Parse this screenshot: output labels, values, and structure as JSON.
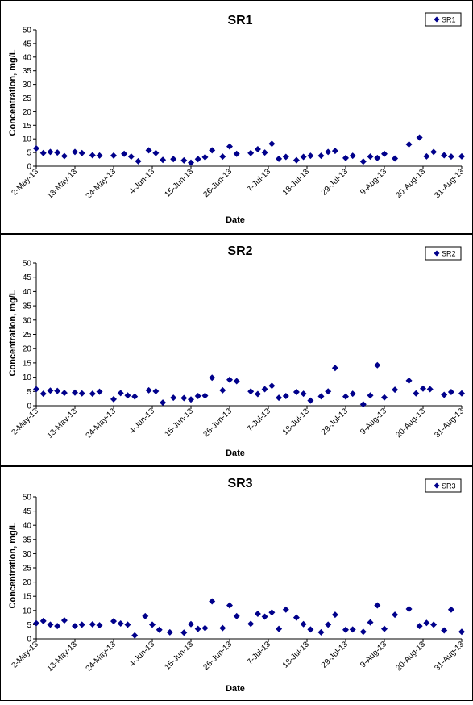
{
  "chart_data": [
    {
      "type": "scatter",
      "title": "SR1",
      "xlabel": "Date",
      "ylabel": "Concentration, mg/L",
      "ylim": [
        0,
        50
      ],
      "yticks": [
        0,
        5,
        10,
        15,
        20,
        25,
        30,
        35,
        40,
        45,
        50
      ],
      "xlim": [
        "2013-05-02",
        "2013-08-31"
      ],
      "xtick_labels": [
        "2-May-13",
        "13-May-13",
        "24-May-13",
        "4-Jun-13",
        "15-Jun-13",
        "26-Jun-13",
        "7-Jul-13",
        "18-Jul-13",
        "29-Jul-13",
        "9-Aug-13",
        "20-Aug-13",
        "31-Aug-13"
      ],
      "legend_position": "top-right",
      "grid": false,
      "marker": "diamond",
      "color": "#00008B",
      "series": [
        {
          "name": "SR1",
          "x": [
            "2013-05-02",
            "2013-05-04",
            "2013-05-06",
            "2013-05-08",
            "2013-05-10",
            "2013-05-13",
            "2013-05-15",
            "2013-05-18",
            "2013-05-20",
            "2013-05-24",
            "2013-05-27",
            "2013-05-29",
            "2013-05-31",
            "2013-06-03",
            "2013-06-05",
            "2013-06-07",
            "2013-06-10",
            "2013-06-13",
            "2013-06-15",
            "2013-06-17",
            "2013-06-19",
            "2013-06-21",
            "2013-06-24",
            "2013-06-26",
            "2013-06-28",
            "2013-07-02",
            "2013-07-04",
            "2013-07-06",
            "2013-07-08",
            "2013-07-10",
            "2013-07-12",
            "2013-07-15",
            "2013-07-17",
            "2013-07-19",
            "2013-07-22",
            "2013-07-24",
            "2013-07-26",
            "2013-07-29",
            "2013-07-31",
            "2013-08-03",
            "2013-08-05",
            "2013-08-07",
            "2013-08-09",
            "2013-08-12",
            "2013-08-16",
            "2013-08-19",
            "2013-08-21",
            "2013-08-23",
            "2013-08-26",
            "2013-08-28",
            "2013-08-31"
          ],
          "y": [
            6.5,
            4.8,
            5.2,
            5.0,
            3.7,
            5.2,
            4.8,
            4.0,
            3.9,
            3.9,
            4.5,
            3.5,
            1.8,
            5.8,
            4.8,
            2.3,
            2.6,
            2.1,
            1.3,
            2.6,
            3.3,
            5.8,
            3.5,
            7.2,
            4.5,
            4.8,
            6.2,
            5.0,
            8.2,
            2.7,
            3.4,
            2.2,
            3.4,
            3.8,
            3.8,
            5.2,
            5.6,
            3.0,
            3.8,
            1.7,
            3.5,
            3.0,
            4.5,
            2.8,
            8.0,
            10.5,
            3.6,
            5.2,
            4.0,
            3.5,
            3.6
          ]
        }
      ]
    },
    {
      "type": "scatter",
      "title": "SR2",
      "xlabel": "Date",
      "ylabel": "Concentration, mg/L",
      "ylim": [
        0,
        50
      ],
      "yticks": [
        0,
        5,
        10,
        15,
        20,
        25,
        30,
        35,
        40,
        45,
        50
      ],
      "xlim": [
        "2013-05-02",
        "2013-08-31"
      ],
      "xtick_labels": [
        "2-May-13",
        "13-May-13",
        "24-May-13",
        "4-Jun-13",
        "15-Jun-13",
        "26-Jun-13",
        "7-Jul-13",
        "18-Jul-13",
        "29-Jul-13",
        "9-Aug-13",
        "20-Aug-13",
        "31-Aug-13"
      ],
      "legend_position": "top-right",
      "grid": false,
      "marker": "diamond",
      "color": "#00008B",
      "series": [
        {
          "name": "SR2",
          "x": [
            "2013-05-02",
            "2013-05-04",
            "2013-05-06",
            "2013-05-08",
            "2013-05-10",
            "2013-05-13",
            "2013-05-15",
            "2013-05-18",
            "2013-05-20",
            "2013-05-24",
            "2013-05-26",
            "2013-05-28",
            "2013-05-30",
            "2013-06-03",
            "2013-06-05",
            "2013-06-07",
            "2013-06-10",
            "2013-06-13",
            "2013-06-15",
            "2013-06-17",
            "2013-06-19",
            "2013-06-21",
            "2013-06-24",
            "2013-06-26",
            "2013-06-28",
            "2013-07-02",
            "2013-07-04",
            "2013-07-06",
            "2013-07-08",
            "2013-07-10",
            "2013-07-12",
            "2013-07-15",
            "2013-07-17",
            "2013-07-19",
            "2013-07-22",
            "2013-07-24",
            "2013-07-26",
            "2013-07-29",
            "2013-07-31",
            "2013-08-03",
            "2013-08-05",
            "2013-08-07",
            "2013-08-09",
            "2013-08-12",
            "2013-08-16",
            "2013-08-18",
            "2013-08-20",
            "2013-08-22",
            "2013-08-26",
            "2013-08-28",
            "2013-08-31"
          ],
          "y": [
            5.8,
            4.2,
            5.3,
            5.2,
            4.5,
            4.6,
            4.3,
            4.2,
            4.9,
            2.3,
            4.4,
            3.6,
            3.2,
            5.4,
            5.1,
            1.1,
            2.8,
            2.7,
            2.2,
            3.4,
            3.5,
            9.8,
            5.4,
            9.1,
            8.6,
            5.0,
            4.1,
            5.8,
            7.0,
            2.8,
            3.4,
            4.8,
            4.2,
            1.8,
            3.3,
            5.0,
            13.2,
            3.2,
            4.2,
            0.5,
            3.6,
            14.2,
            2.9,
            5.6,
            8.8,
            4.3,
            6.0,
            5.8,
            3.8,
            4.8,
            4.3
          ]
        }
      ]
    },
    {
      "type": "scatter",
      "title": "SR3",
      "xlabel": "Date",
      "ylabel": "Concentration, mg/L",
      "ylim": [
        0,
        50
      ],
      "yticks": [
        0,
        5,
        10,
        15,
        20,
        25,
        30,
        35,
        40,
        45,
        50
      ],
      "xlim": [
        "2013-05-02",
        "2013-08-31"
      ],
      "xtick_labels": [
        "2-May-13",
        "13-May-13",
        "24-May-13",
        "4-Jun-13",
        "15-Jun-13",
        "26-Jun-13",
        "7-Jul-13",
        "18-Jul-13",
        "29-Jul-13",
        "9-Aug-13",
        "20-Aug-13",
        "31-Aug-13"
      ],
      "legend_position": "top-right",
      "grid": false,
      "marker": "diamond",
      "color": "#00008B",
      "series": [
        {
          "name": "SR3",
          "x": [
            "2013-05-02",
            "2013-05-04",
            "2013-05-06",
            "2013-05-08",
            "2013-05-10",
            "2013-05-13",
            "2013-05-15",
            "2013-05-18",
            "2013-05-20",
            "2013-05-24",
            "2013-05-26",
            "2013-05-28",
            "2013-05-30",
            "2013-06-02",
            "2013-06-04",
            "2013-06-06",
            "2013-06-09",
            "2013-06-13",
            "2013-06-15",
            "2013-06-17",
            "2013-06-19",
            "2013-06-21",
            "2013-06-24",
            "2013-06-26",
            "2013-06-28",
            "2013-07-02",
            "2013-07-04",
            "2013-07-06",
            "2013-07-08",
            "2013-07-10",
            "2013-07-12",
            "2013-07-15",
            "2013-07-17",
            "2013-07-19",
            "2013-07-22",
            "2013-07-24",
            "2013-07-26",
            "2013-07-29",
            "2013-07-31",
            "2013-08-03",
            "2013-08-05",
            "2013-08-07",
            "2013-08-09",
            "2013-08-12",
            "2013-08-16",
            "2013-08-19",
            "2013-08-21",
            "2013-08-23",
            "2013-08-26",
            "2013-08-28",
            "2013-08-31"
          ],
          "y": [
            5.5,
            6.3,
            5.0,
            4.5,
            6.5,
            4.5,
            5.0,
            5.1,
            4.8,
            6.2,
            5.4,
            5.0,
            1.2,
            8.0,
            5.0,
            3.2,
            2.3,
            2.2,
            5.2,
            3.5,
            3.8,
            13.2,
            3.8,
            11.8,
            8.0,
            5.3,
            8.8,
            7.8,
            9.3,
            3.5,
            10.3,
            7.5,
            5.2,
            3.3,
            2.3,
            5.0,
            8.5,
            3.2,
            3.3,
            2.5,
            5.8,
            11.8,
            3.5,
            8.5,
            10.5,
            4.5,
            5.6,
            5.0,
            3.0,
            10.3,
            2.5
          ]
        }
      ]
    }
  ]
}
